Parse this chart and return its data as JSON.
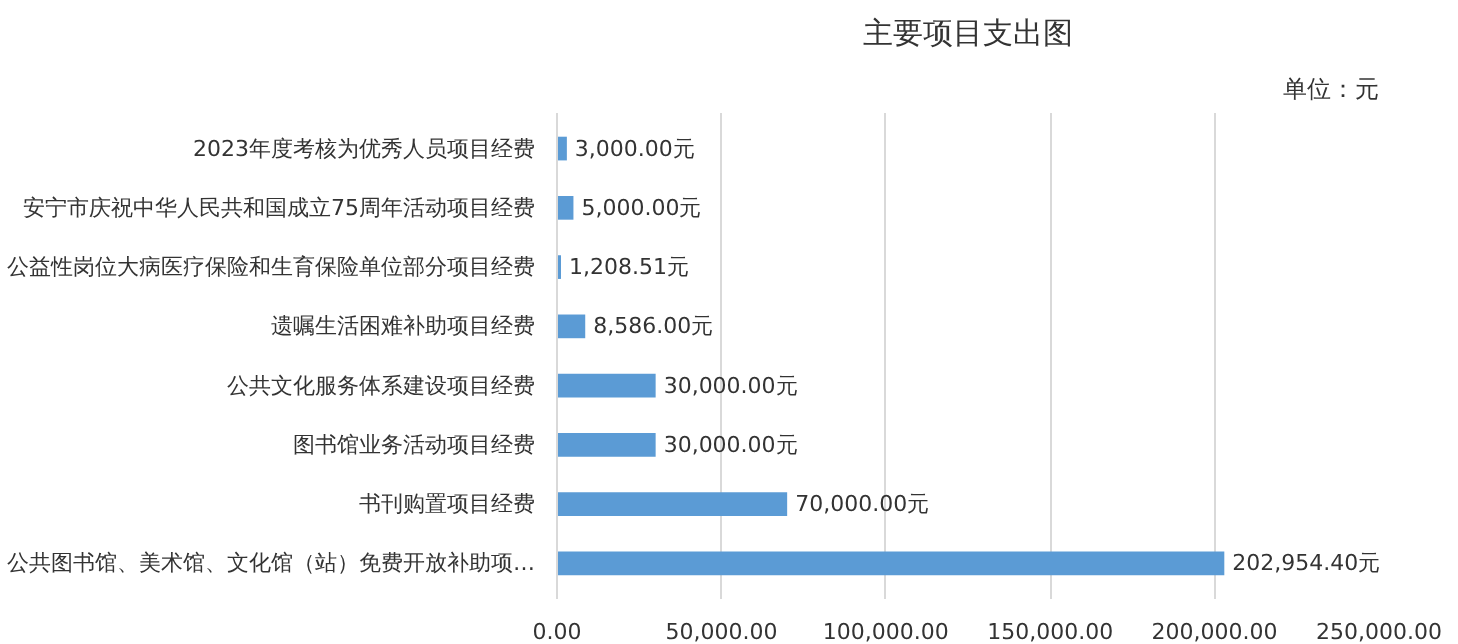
{
  "chart_data": {
    "type": "bar",
    "orientation": "horizontal",
    "title": "主要项目支出图",
    "annotations": [
      "单位：元"
    ],
    "categories": [
      "2023年度考核为优秀人员项目经费",
      "安宁市庆祝中华人民共和国成立75周年活动项目经费",
      "公益性岗位大病医疗保险和生育保险单位部分项目经费",
      "遗嘱生活困难补助项目经费",
      "公共文化服务体系建设项目经费",
      "图书馆业务活动项目经费",
      "书刊购置项目经费",
      "公共图书馆、美术馆、文化馆（站）免费开放补助项…"
    ],
    "values": [
      3000,
      5000,
      1208.51,
      8586,
      30000,
      30000,
      70000,
      202954.4
    ],
    "value_labels": [
      "3,000.00元",
      "5,000.00元",
      "1,208.51元",
      "8,586.00元",
      "30,000.00元",
      "30,000.00元",
      "70,000.00元",
      "202,954.40元"
    ],
    "color": "#5b9bd5",
    "xlim": [
      0,
      250000
    ],
    "xticks": [
      {
        "value": 0,
        "label": "0.00"
      },
      {
        "value": 50000,
        "label": "50,000.00"
      },
      {
        "value": 100000,
        "label": "100,000.00"
      },
      {
        "value": 150000,
        "label": "150,000.00"
      },
      {
        "value": 200000,
        "label": "200,000.00"
      },
      {
        "value": 250000,
        "label": "250,000.00"
      }
    ],
    "grid": "x"
  }
}
